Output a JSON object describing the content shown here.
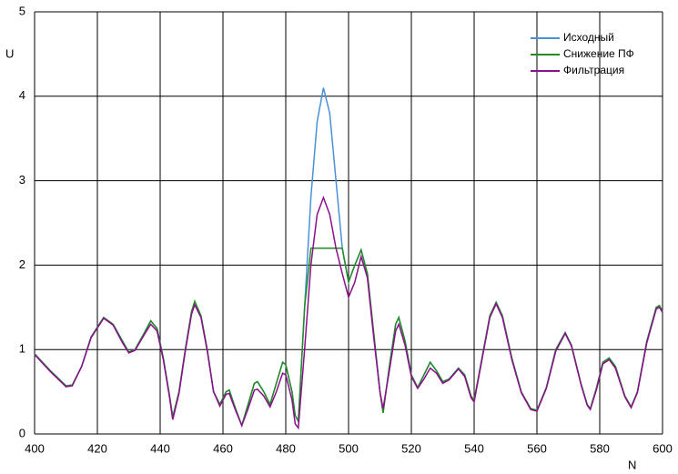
{
  "chart_data": {
    "type": "line",
    "x_label": "N",
    "y_label": "U",
    "x": [
      400,
      405,
      410,
      412,
      415,
      418,
      422,
      425,
      428,
      430,
      432,
      435,
      437,
      439,
      441,
      443,
      444,
      446,
      448,
      450,
      451,
      453,
      455,
      457,
      459,
      461,
      462,
      464,
      466,
      468,
      470,
      471,
      473,
      475,
      477,
      479,
      480,
      482,
      483,
      484,
      486,
      488,
      490,
      492,
      494,
      496,
      498,
      500,
      502,
      504,
      506,
      508,
      510,
      511,
      513,
      515,
      516,
      518,
      520,
      522,
      524,
      526,
      528,
      530,
      532,
      535,
      537,
      539,
      540,
      542,
      545,
      547,
      549,
      552,
      555,
      558,
      560,
      563,
      566,
      569,
      571,
      574,
      576,
      577,
      579,
      581,
      583,
      585,
      588,
      590,
      592,
      595,
      598,
      599,
      600
    ],
    "series": [
      {
        "name": "Исходный",
        "color": "#4a90d9",
        "values": [
          0.95,
          0.75,
          0.57,
          0.58,
          0.8,
          1.15,
          1.38,
          1.3,
          1.1,
          0.97,
          1.0,
          1.2,
          1.34,
          1.25,
          0.9,
          0.45,
          0.2,
          0.5,
          1.0,
          1.45,
          1.57,
          1.4,
          1.0,
          0.5,
          0.35,
          0.5,
          0.52,
          0.3,
          0.1,
          0.35,
          0.6,
          0.62,
          0.5,
          0.35,
          0.6,
          0.85,
          0.82,
          0.5,
          0.22,
          0.15,
          1.5,
          2.8,
          3.7,
          4.1,
          3.8,
          3.0,
          2.2,
          1.8,
          2.0,
          2.18,
          1.9,
          1.2,
          0.5,
          0.25,
          0.8,
          1.3,
          1.38,
          1.1,
          0.7,
          0.55,
          0.7,
          0.85,
          0.75,
          0.62,
          0.65,
          0.78,
          0.7,
          0.45,
          0.4,
          0.8,
          1.4,
          1.56,
          1.4,
          0.9,
          0.5,
          0.3,
          0.28,
          0.55,
          1.0,
          1.2,
          1.05,
          0.6,
          0.35,
          0.3,
          0.55,
          0.85,
          0.9,
          0.8,
          0.45,
          0.32,
          0.5,
          1.1,
          1.5,
          1.52,
          1.45
        ]
      },
      {
        "name": "Снижение ПФ",
        "color": "#228b22",
        "values": [
          0.95,
          0.75,
          0.57,
          0.58,
          0.8,
          1.15,
          1.38,
          1.3,
          1.1,
          0.97,
          1.0,
          1.2,
          1.34,
          1.25,
          0.9,
          0.45,
          0.2,
          0.5,
          1.0,
          1.45,
          1.57,
          1.4,
          1.0,
          0.5,
          0.35,
          0.5,
          0.52,
          0.3,
          0.1,
          0.35,
          0.6,
          0.62,
          0.5,
          0.35,
          0.6,
          0.85,
          0.82,
          0.5,
          0.22,
          0.15,
          1.5,
          2.2,
          2.2,
          2.2,
          2.2,
          2.2,
          2.2,
          1.8,
          2.0,
          2.18,
          1.9,
          1.2,
          0.5,
          0.25,
          0.8,
          1.3,
          1.38,
          1.1,
          0.7,
          0.55,
          0.7,
          0.85,
          0.75,
          0.62,
          0.65,
          0.78,
          0.7,
          0.45,
          0.4,
          0.8,
          1.4,
          1.56,
          1.4,
          0.9,
          0.5,
          0.3,
          0.28,
          0.55,
          1.0,
          1.2,
          1.05,
          0.6,
          0.35,
          0.3,
          0.55,
          0.85,
          0.9,
          0.8,
          0.45,
          0.32,
          0.5,
          1.1,
          1.5,
          1.52,
          1.45
        ]
      },
      {
        "name": "Фильтрация",
        "color": "#8b108b",
        "values": [
          0.94,
          0.74,
          0.56,
          0.57,
          0.8,
          1.14,
          1.37,
          1.29,
          1.08,
          0.96,
          0.99,
          1.18,
          1.3,
          1.22,
          0.88,
          0.43,
          0.17,
          0.48,
          0.98,
          1.42,
          1.53,
          1.38,
          0.98,
          0.5,
          0.33,
          0.47,
          0.48,
          0.28,
          0.1,
          0.3,
          0.52,
          0.53,
          0.45,
          0.32,
          0.5,
          0.72,
          0.7,
          0.4,
          0.12,
          0.07,
          1.0,
          2.0,
          2.6,
          2.8,
          2.6,
          2.2,
          1.9,
          1.62,
          1.8,
          2.1,
          1.85,
          1.15,
          0.5,
          0.3,
          0.75,
          1.22,
          1.3,
          1.05,
          0.68,
          0.54,
          0.65,
          0.78,
          0.72,
          0.6,
          0.64,
          0.77,
          0.68,
          0.43,
          0.38,
          0.78,
          1.38,
          1.54,
          1.38,
          0.88,
          0.49,
          0.29,
          0.27,
          0.54,
          0.98,
          1.19,
          1.04,
          0.59,
          0.34,
          0.29,
          0.53,
          0.83,
          0.88,
          0.78,
          0.44,
          0.31,
          0.49,
          1.08,
          1.48,
          1.5,
          1.44
        ]
      }
    ],
    "xlim": [
      400,
      600
    ],
    "ylim": [
      0,
      5
    ],
    "xticks": [
      400,
      420,
      440,
      460,
      480,
      500,
      520,
      540,
      560,
      580,
      600
    ],
    "yticks": [
      0,
      1,
      2,
      3,
      4,
      5
    ],
    "grid": true,
    "legend": "top-right"
  }
}
